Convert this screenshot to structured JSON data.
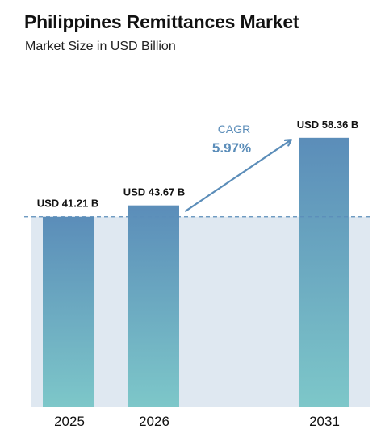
{
  "header": {
    "title": "Philippines Remittances Market",
    "subtitle": "Market Size in USD Billion"
  },
  "colors": {
    "bar_top": "#5b8db9",
    "bar_bottom": "#7dc7c9",
    "band": "#dfe8f1",
    "dashed_line": "#5b8db9",
    "arrow": "#5b8db9",
    "axis": "#999999"
  },
  "chart_data": {
    "type": "bar",
    "categories": [
      "2025",
      "2026",
      "2031"
    ],
    "values": [
      41.21,
      43.67,
      58.36
    ],
    "value_labels": [
      "USD 41.21 B",
      "USD 43.67 B",
      "USD 58.36 B"
    ],
    "title": "Philippines Remittances Market",
    "subtitle": "Market Size in USD Billion",
    "xlabel": "",
    "ylabel": "",
    "grid": false,
    "annotation": {
      "label": "CAGR",
      "value": "5.97%"
    }
  }
}
